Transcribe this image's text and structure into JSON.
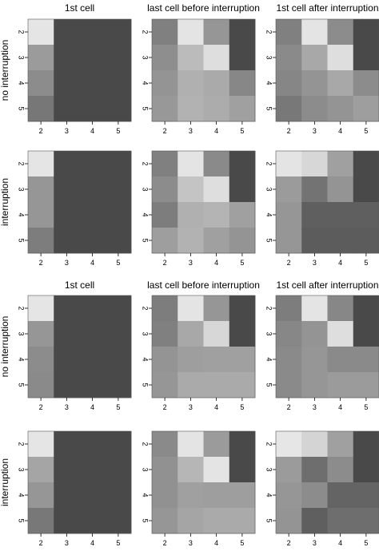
{
  "panel_titles": [
    "1st cell",
    "last cell before interruption",
    "1st cell after interruption"
  ],
  "row_labels": [
    "no interruption",
    "interruption",
    "no interruption",
    "interruption"
  ],
  "chart_data": {
    "type": "heatmap",
    "x_tick_labels": [
      "2",
      "3",
      "4",
      "5"
    ],
    "y_tick_labels": [
      "2",
      "3",
      "4",
      "5"
    ],
    "value_scale": "cell values are grey levels: 0 = black, 255 = white",
    "groups": [
      {
        "rows": [
          {
            "label": "no interruption",
            "panels": [
              {
                "title": "1st cell",
                "cells": [
                  [
                    229,
                    73,
                    73,
                    73
                  ],
                  [
                    155,
                    73,
                    73,
                    73
                  ],
                  [
                    140,
                    73,
                    73,
                    73
                  ],
                  [
                    119,
                    73,
                    73,
                    73
                  ]
                ]
              },
              {
                "title": "last cell before interruption",
                "cells": [
                  [
                    128,
                    228,
                    150,
                    73
                  ],
                  [
                    142,
                    187,
                    222,
                    73
                  ],
                  [
                    148,
                    176,
                    170,
                    135
                  ],
                  [
                    152,
                    178,
                    172,
                    160
                  ]
                ]
              },
              {
                "title": "1st cell after interruption",
                "cells": [
                  [
                    128,
                    228,
                    140,
                    73
                  ],
                  [
                    138,
                    168,
                    222,
                    73
                  ],
                  [
                    134,
                    148,
                    168,
                    140
                  ],
                  [
                    120,
                    140,
                    148,
                    158
                  ]
                ]
              }
            ]
          },
          {
            "label": "interruption",
            "panels": [
              {
                "title": "1st cell",
                "cells": [
                  [
                    229,
                    73,
                    73,
                    73
                  ],
                  [
                    150,
                    73,
                    73,
                    73
                  ],
                  [
                    150,
                    73,
                    73,
                    73
                  ],
                  [
                    125,
                    73,
                    73,
                    73
                  ]
                ]
              },
              {
                "title": "last cell before interruption",
                "cells": [
                  [
                    128,
                    228,
                    138,
                    73
                  ],
                  [
                    140,
                    196,
                    222,
                    73
                  ],
                  [
                    125,
                    176,
                    180,
                    160
                  ],
                  [
                    158,
                    178,
                    160,
                    148
                  ]
                ]
              },
              {
                "title": "1st cell after interruption",
                "cells": [
                  [
                    228,
                    215,
                    160,
                    73
                  ],
                  [
                    155,
                    115,
                    148,
                    73
                  ],
                  [
                    150,
                    95,
                    95,
                    95
                  ],
                  [
                    150,
                    92,
                    92,
                    92
                  ]
                ]
              }
            ]
          }
        ]
      },
      {
        "rows": [
          {
            "label": "no interruption",
            "panels": [
              {
                "title": "1st cell",
                "cells": [
                  [
                    229,
                    73,
                    73,
                    73
                  ],
                  [
                    150,
                    73,
                    73,
                    73
                  ],
                  [
                    140,
                    73,
                    73,
                    73
                  ],
                  [
                    138,
                    73,
                    73,
                    73
                  ]
                ]
              },
              {
                "title": "last cell before interruption",
                "cells": [
                  [
                    125,
                    228,
                    150,
                    73
                  ],
                  [
                    128,
                    168,
                    215,
                    73
                  ],
                  [
                    148,
                    158,
                    160,
                    160
                  ],
                  [
                    150,
                    170,
                    170,
                    170
                  ]
                ]
              },
              {
                "title": "1st cell after interruption",
                "cells": [
                  [
                    125,
                    228,
                    135,
                    73
                  ],
                  [
                    135,
                    148,
                    222,
                    73
                  ],
                  [
                    138,
                    150,
                    138,
                    138
                  ],
                  [
                    138,
                    150,
                    155,
                    155
                  ]
                ]
              }
            ]
          },
          {
            "label": "interruption",
            "panels": [
              {
                "title": "1st cell",
                "cells": [
                  [
                    229,
                    73,
                    73,
                    73
                  ],
                  [
                    165,
                    73,
                    73,
                    73
                  ],
                  [
                    150,
                    73,
                    73,
                    73
                  ],
                  [
                    120,
                    73,
                    73,
                    73
                  ]
                ]
              },
              {
                "title": "last cell before interruption",
                "cells": [
                  [
                    138,
                    228,
                    155,
                    73
                  ],
                  [
                    145,
                    182,
                    228,
                    73
                  ],
                  [
                    145,
                    160,
                    158,
                    158
                  ],
                  [
                    150,
                    165,
                    170,
                    170
                  ]
                ]
              },
              {
                "title": "1st cell after interruption",
                "cells": [
                  [
                    230,
                    212,
                    160,
                    73
                  ],
                  [
                    155,
                    110,
                    140,
                    73
                  ],
                  [
                    150,
                    140,
                    100,
                    100
                  ],
                  [
                    148,
                    95,
                    110,
                    110
                  ]
                ]
              }
            ]
          }
        ]
      }
    ]
  }
}
